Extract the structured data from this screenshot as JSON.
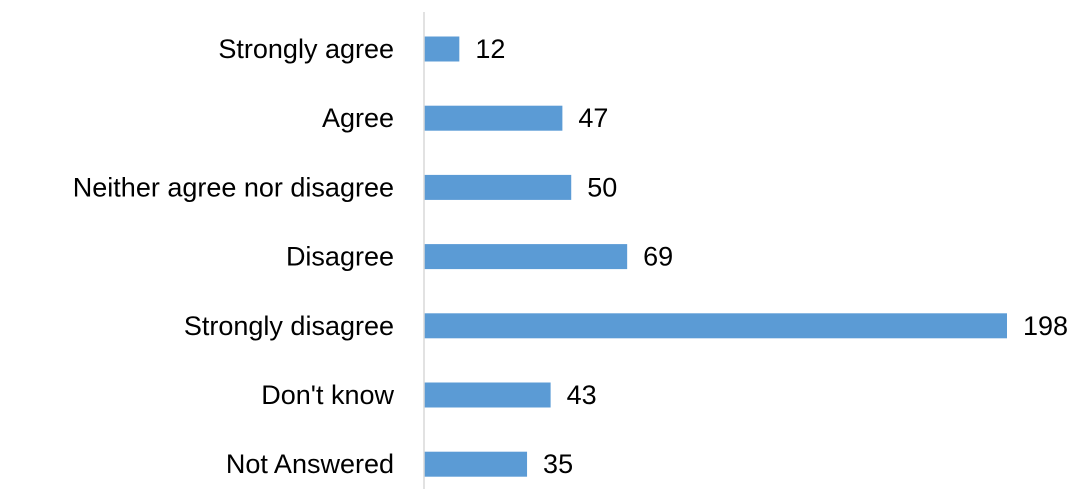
{
  "chart_data": {
    "type": "bar",
    "orientation": "horizontal",
    "title": "",
    "xlabel": "",
    "ylabel": "",
    "categories": [
      "Strongly agree",
      "Agree",
      "Neither agree nor disagree",
      "Disagree",
      "Strongly disagree",
      "Don't know",
      "Not Answered"
    ],
    "values": [
      12,
      47,
      50,
      69,
      198,
      43,
      35
    ],
    "xlim": [
      0,
      198
    ],
    "grid": false,
    "legend": "none",
    "data_labels": true,
    "bar_color": "#5b9bd5",
    "axis_color": "#d9d9d9",
    "text_color": "#000000"
  }
}
